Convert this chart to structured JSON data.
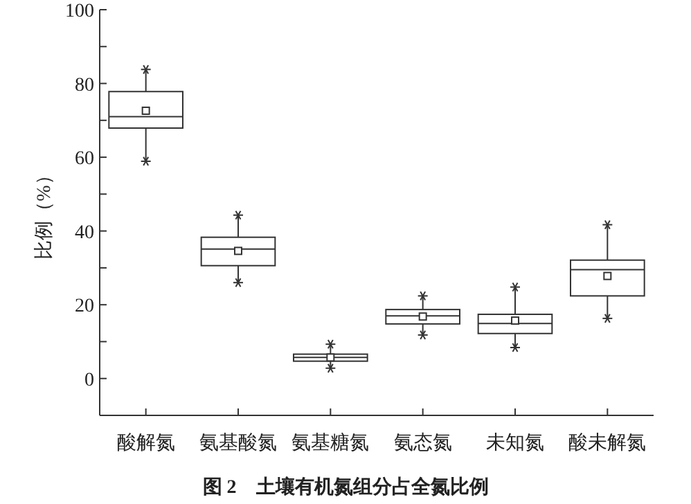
{
  "chart_data": {
    "type": "box",
    "title": "图 2　土壤有机氮组分占全氮比例",
    "ylabel": "比例（%）",
    "categories": [
      "酸解氮",
      "氨基酸氮",
      "氨基糖氮",
      "氨态氮",
      "未知氮",
      "酸未解氮"
    ],
    "boxes": [
      {
        "low": 58.9,
        "q1": 67.9,
        "median": 71.0,
        "q3": 77.8,
        "high": 83.8,
        "mean": 72.6,
        "outliers": [
          58.9,
          83.8
        ]
      },
      {
        "low": 26.0,
        "q1": 30.6,
        "median": 35.1,
        "q3": 38.3,
        "high": 44.3,
        "mean": 34.6,
        "outliers": [
          26.0,
          44.3
        ]
      },
      {
        "low": 2.8,
        "q1": 4.7,
        "median": 5.7,
        "q3": 6.6,
        "high": 9.3,
        "mean": 5.7,
        "outliers": [
          2.8,
          9.3
        ]
      },
      {
        "low": 11.8,
        "q1": 14.8,
        "median": 17.0,
        "q3": 18.7,
        "high": 22.4,
        "mean": 16.8,
        "outliers": [
          11.8,
          22.4
        ]
      },
      {
        "low": 8.4,
        "q1": 12.2,
        "median": 14.9,
        "q3": 17.4,
        "high": 24.8,
        "mean": 15.7,
        "outliers": [
          8.4,
          24.8
        ]
      },
      {
        "low": 16.3,
        "q1": 22.4,
        "median": 29.5,
        "q3": 32.1,
        "high": 41.7,
        "mean": 27.8,
        "outliers": [
          16.3,
          41.7
        ]
      }
    ],
    "ylim": [
      -10,
      100
    ],
    "yticks": [
      0,
      {
        "value": 10,
        "label": null
      },
      20,
      {
        "value": 30,
        "label": null
      },
      40,
      {
        "value": 50,
        "label": null
      },
      60,
      {
        "value": 70,
        "label": null
      },
      80,
      {
        "value": 90,
        "label": null
      },
      100
    ],
    "grid": false
  }
}
